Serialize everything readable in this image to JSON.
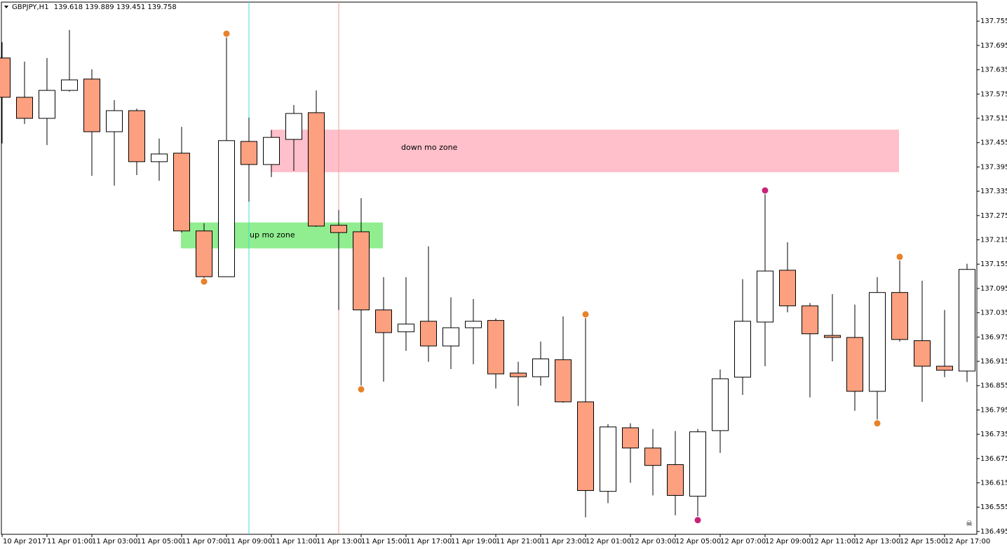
{
  "chart_data": {
    "type": "candlestick",
    "title": "GBPJPY,H1",
    "header_values": [
      139.618,
      139.889,
      139.451,
      139.758
    ],
    "categories": [
      "10 Apr 2017",
      null,
      "11 Apr 01:00",
      null,
      "11 Apr 03:00",
      null,
      "11 Apr 05:00",
      null,
      "11 Apr 07:00",
      null,
      "11 Apr 09:00",
      null,
      "11 Apr 11:00",
      null,
      "11 Apr 13:00",
      null,
      "11 Apr 15:00",
      null,
      "11 Apr 17:00",
      null,
      "11 Apr 19:00",
      null,
      "11 Apr 21:00",
      null,
      "11 Apr 23:00",
      null,
      "12 Apr 01:00",
      null,
      "12 Apr 03:00",
      null,
      "12 Apr 05:00",
      null,
      "12 Apr 07:00",
      null,
      "12 Apr 09:00",
      null,
      "12 Apr 11:00",
      null,
      "12 Apr 13:00",
      null,
      "12 Apr 15:00",
      null,
      "12 Apr 17:00",
      null
    ],
    "open": [
      137.664,
      137.567,
      137.515,
      137.584,
      137.612,
      137.482,
      137.534,
      137.408,
      137.429,
      137.237,
      137.124,
      137.458,
      137.401,
      137.463,
      137.529,
      137.251,
      137.235,
      137.042,
      136.988,
      137.014,
      136.953,
      136.998,
      137.016,
      136.886,
      136.877,
      136.919,
      136.815,
      136.594,
      136.751,
      136.701,
      136.66,
      136.582,
      136.744,
      136.876,
      137.012,
      137.14,
      137.052,
      136.979,
      136.974,
      136.841,
      137.085,
      136.966,
      136.903,
      136.891
    ],
    "high": [
      137.703,
      137.655,
      137.664,
      137.733,
      137.636,
      137.56,
      137.539,
      137.465,
      137.494,
      137.256,
      137.724,
      137.517,
      137.486,
      137.548,
      137.584,
      137.289,
      137.318,
      137.123,
      137.123,
      137.199,
      137.073,
      137.069,
      137.021,
      136.914,
      136.964,
      137.026,
      137.031,
      136.76,
      136.762,
      136.748,
      136.743,
      136.748,
      136.895,
      137.118,
      137.337,
      137.209,
      137.059,
      137.081,
      137.055,
      137.123,
      137.173,
      137.114,
      137.042,
      137.156
    ],
    "low": [
      137.453,
      137.501,
      137.449,
      137.581,
      137.373,
      137.349,
      137.375,
      137.361,
      137.233,
      137.112,
      137.123,
      137.309,
      137.37,
      137.385,
      137.247,
      137.042,
      136.846,
      136.865,
      136.941,
      136.914,
      136.896,
      136.908,
      136.848,
      136.805,
      136.855,
      136.813,
      136.53,
      136.565,
      136.615,
      136.584,
      136.535,
      136.523,
      136.689,
      136.832,
      136.903,
      137.036,
      136.826,
      136.915,
      136.793,
      136.762,
      136.964,
      136.815,
      136.876,
      136.864
    ],
    "close": [
      137.567,
      137.515,
      137.584,
      137.61,
      137.482,
      137.534,
      137.408,
      137.427,
      137.237,
      137.124,
      137.46,
      137.401,
      137.468,
      137.527,
      137.249,
      137.233,
      137.042,
      136.986,
      137.007,
      136.953,
      136.998,
      137.014,
      136.884,
      136.877,
      136.921,
      136.815,
      136.596,
      136.753,
      136.701,
      136.658,
      136.584,
      136.741,
      136.872,
      137.014,
      137.138,
      137.052,
      136.983,
      136.974,
      136.841,
      137.085,
      136.969,
      136.903,
      136.893,
      137.142
    ],
    "up_color": "#ffffff",
    "down_color": "#fca07f",
    "zones": [
      {
        "label": "up mo zone",
        "top": 137.258,
        "bottom": 137.194,
        "color": "#90ee90"
      },
      {
        "label": "down mo zone",
        "top": 137.487,
        "bottom": 137.382,
        "color": "#ffc0cb"
      }
    ],
    "ylim": [
      136.488,
      137.802
    ],
    "yticks": [
      137.755,
      137.695,
      137.635,
      137.575,
      137.515,
      137.455,
      137.395,
      137.335,
      137.275,
      137.215,
      137.155,
      137.095,
      137.035,
      136.975,
      136.915,
      136.855,
      136.795,
      136.735,
      136.675,
      136.615,
      136.555,
      136.495
    ],
    "grid": false
  }
}
